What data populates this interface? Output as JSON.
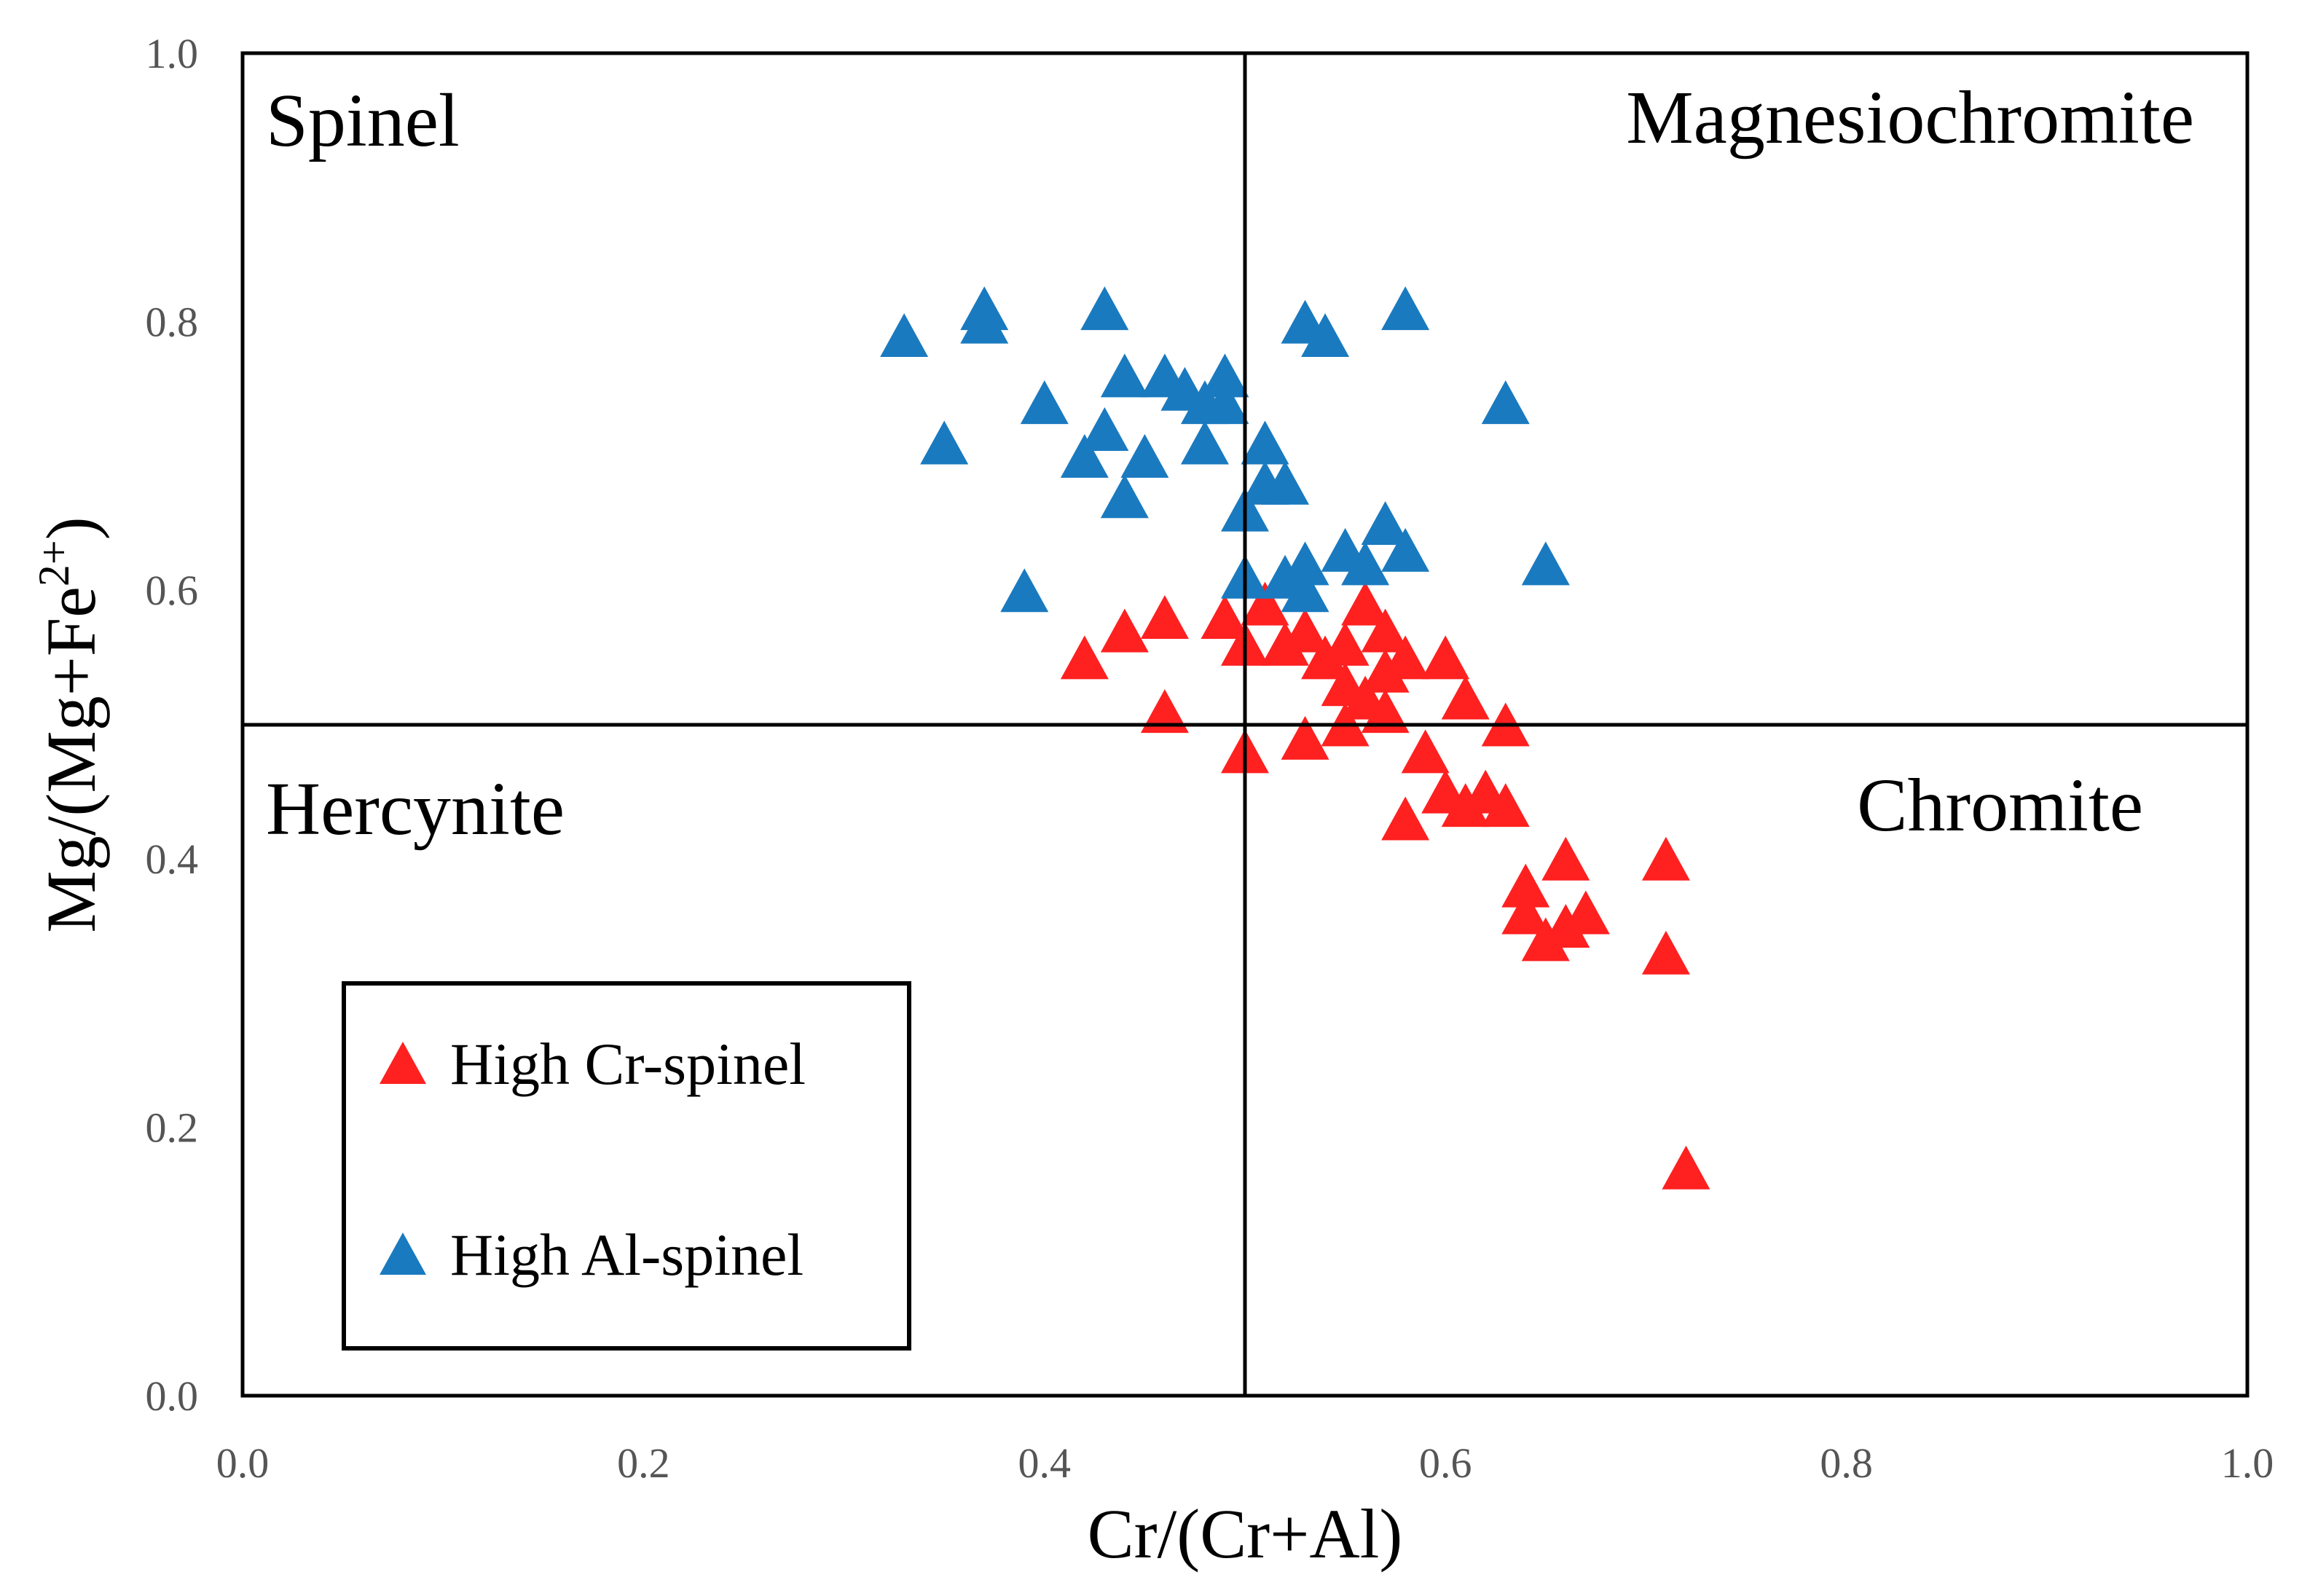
{
  "chart_data": {
    "type": "scatter",
    "xlabel": "Cr/(Cr+Al)",
    "ylabel": {
      "main": "Mg/(Mg+Fe",
      "sup": "2+",
      "close": ")"
    },
    "xlim": [
      0.0,
      1.0
    ],
    "ylim": [
      0.0,
      1.0
    ],
    "xticks": [
      "0.0",
      "0.2",
      "0.4",
      "0.6",
      "0.8",
      "1.0"
    ],
    "yticks": [
      "0.0",
      "0.2",
      "0.4",
      "0.6",
      "0.8",
      "1.0"
    ],
    "divider_x": 0.5,
    "divider_y": 0.5,
    "grid": false,
    "legend_position": "lower-left",
    "regions": [
      {
        "label": "Spinel",
        "quadrant": "top-left"
      },
      {
        "label": "Magnesiochromite",
        "quadrant": "top-right"
      },
      {
        "label": "Hercynite",
        "quadrant": "bottom-left"
      },
      {
        "label": "Chromite",
        "quadrant": "bottom-right"
      }
    ],
    "series": [
      {
        "name": "High Cr-spinel",
        "color": "#ff2020",
        "marker": "triangle",
        "points": [
          [
            0.42,
            0.55
          ],
          [
            0.44,
            0.57
          ],
          [
            0.46,
            0.58
          ],
          [
            0.46,
            0.51
          ],
          [
            0.49,
            0.58
          ],
          [
            0.5,
            0.48
          ],
          [
            0.5,
            0.56
          ],
          [
            0.51,
            0.59
          ],
          [
            0.52,
            0.56
          ],
          [
            0.53,
            0.57
          ],
          [
            0.53,
            0.49
          ],
          [
            0.54,
            0.55
          ],
          [
            0.55,
            0.5
          ],
          [
            0.55,
            0.53
          ],
          [
            0.55,
            0.56
          ],
          [
            0.56,
            0.59
          ],
          [
            0.56,
            0.52
          ],
          [
            0.57,
            0.51
          ],
          [
            0.57,
            0.54
          ],
          [
            0.57,
            0.57
          ],
          [
            0.58,
            0.55
          ],
          [
            0.58,
            0.43
          ],
          [
            0.59,
            0.48
          ],
          [
            0.6,
            0.55
          ],
          [
            0.6,
            0.45
          ],
          [
            0.61,
            0.44
          ],
          [
            0.61,
            0.52
          ],
          [
            0.62,
            0.45
          ],
          [
            0.63,
            0.44
          ],
          [
            0.63,
            0.5
          ],
          [
            0.64,
            0.38
          ],
          [
            0.64,
            0.36
          ],
          [
            0.65,
            0.34
          ],
          [
            0.66,
            0.4
          ],
          [
            0.66,
            0.35
          ],
          [
            0.67,
            0.36
          ],
          [
            0.71,
            0.33
          ],
          [
            0.71,
            0.4
          ],
          [
            0.72,
            0.17
          ]
        ]
      },
      {
        "name": "High Al-spinel",
        "color": "#1a7abf",
        "marker": "triangle",
        "points": [
          [
            0.33,
            0.79
          ],
          [
            0.35,
            0.71
          ],
          [
            0.37,
            0.8
          ],
          [
            0.37,
            0.81
          ],
          [
            0.39,
            0.6
          ],
          [
            0.4,
            0.74
          ],
          [
            0.42,
            0.7
          ],
          [
            0.43,
            0.72
          ],
          [
            0.43,
            0.81
          ],
          [
            0.44,
            0.76
          ],
          [
            0.44,
            0.67
          ],
          [
            0.45,
            0.7
          ],
          [
            0.46,
            0.76
          ],
          [
            0.47,
            0.75
          ],
          [
            0.48,
            0.74
          ],
          [
            0.48,
            0.71
          ],
          [
            0.49,
            0.76
          ],
          [
            0.49,
            0.74
          ],
          [
            0.5,
            0.61
          ],
          [
            0.5,
            0.66
          ],
          [
            0.51,
            0.71
          ],
          [
            0.51,
            0.68
          ],
          [
            0.52,
            0.61
          ],
          [
            0.52,
            0.68
          ],
          [
            0.53,
            0.6
          ],
          [
            0.53,
            0.62
          ],
          [
            0.53,
            0.8
          ],
          [
            0.54,
            0.79
          ],
          [
            0.55,
            0.63
          ],
          [
            0.56,
            0.62
          ],
          [
            0.57,
            0.65
          ],
          [
            0.58,
            0.63
          ],
          [
            0.58,
            0.81
          ],
          [
            0.63,
            0.74
          ],
          [
            0.65,
            0.62
          ]
        ]
      }
    ]
  }
}
